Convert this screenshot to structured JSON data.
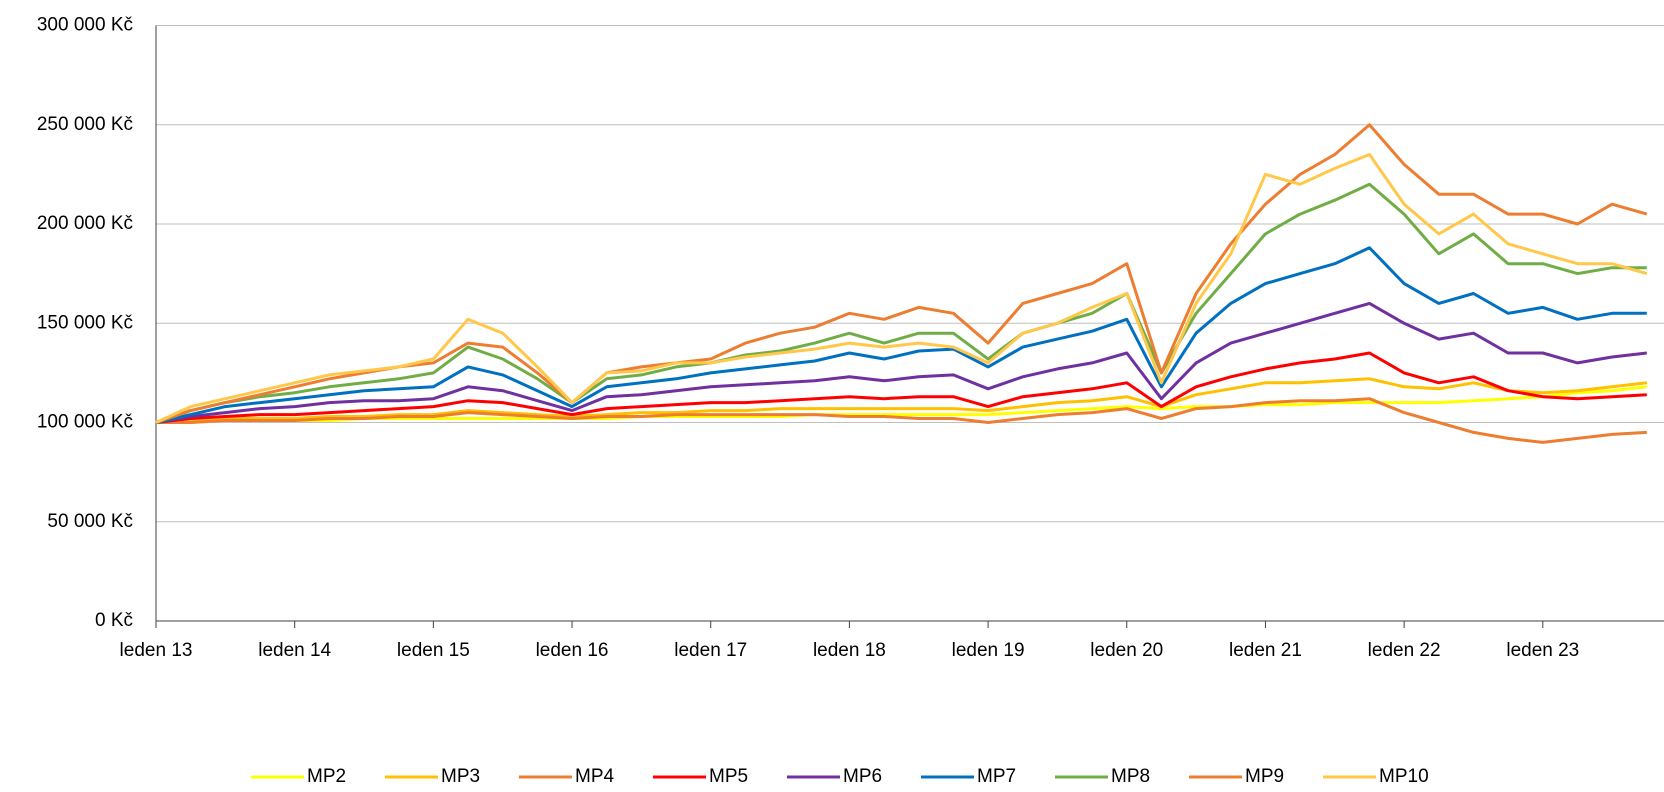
{
  "chart_data": {
    "type": "line",
    "categories": [
      "leden 13",
      null,
      null,
      null,
      "leden 14",
      null,
      null,
      null,
      "leden 15",
      null,
      null,
      null,
      "leden 16",
      null,
      null,
      null,
      "leden 17",
      null,
      null,
      null,
      "leden 18",
      null,
      null,
      null,
      "leden 19",
      null,
      null,
      null,
      "leden 20",
      null,
      null,
      null,
      "leden 21",
      null,
      null,
      null,
      "leden 22",
      null,
      null,
      null,
      "leden 23",
      null,
      null,
      null
    ],
    "ylim": [
      0,
      300000
    ],
    "yticks": [
      {
        "value": 0,
        "label": "0 Kč"
      },
      {
        "value": 50000,
        "label": "50 000 Kč"
      },
      {
        "value": 100000,
        "label": "100 000 Kč"
      },
      {
        "value": 150000,
        "label": "150 000 Kč"
      },
      {
        "value": 200000,
        "label": "200 000 Kč"
      },
      {
        "value": 250000,
        "label": "250 000 Kč"
      },
      {
        "value": 300000,
        "label": "300 000 Kč"
      }
    ],
    "grid": true,
    "legend": "bottom",
    "series": [
      {
        "name": "MP2",
        "color": "#ffff00",
        "values": [
          100000,
          100000,
          101000,
          101000,
          101000,
          101000,
          102000,
          102000,
          102000,
          102000,
          102000,
          102000,
          102000,
          102000,
          103000,
          103000,
          103000,
          103000,
          103000,
          104000,
          104000,
          104000,
          104000,
          104000,
          104000,
          105000,
          106000,
          107000,
          108000,
          107000,
          108000,
          108000,
          109000,
          109000,
          110000,
          110000,
          110000,
          110000,
          111000,
          112000,
          113000,
          115000,
          116000,
          118000
        ]
      },
      {
        "name": "MP3",
        "color": "#ffc000",
        "values": [
          100000,
          101000,
          102000,
          102000,
          102000,
          103000,
          103000,
          104000,
          104000,
          106000,
          105000,
          104000,
          103000,
          104000,
          105000,
          105000,
          106000,
          106000,
          107000,
          107000,
          107000,
          107000,
          107000,
          107000,
          106000,
          108000,
          110000,
          111000,
          113000,
          108000,
          114000,
          117000,
          120000,
          120000,
          121000,
          122000,
          118000,
          117000,
          120000,
          116000,
          115000,
          116000,
          118000,
          120000
        ]
      },
      {
        "name": "MP4",
        "color": "#ed7d31",
        "values": [
          100000,
          100000,
          101000,
          101000,
          101000,
          102000,
          102000,
          103000,
          103000,
          105000,
          104000,
          103000,
          102000,
          103000,
          103000,
          104000,
          104000,
          104000,
          104000,
          104000,
          103000,
          103000,
          102000,
          102000,
          100000,
          102000,
          104000,
          105000,
          107000,
          102000,
          107000,
          108000,
          110000,
          111000,
          111000,
          112000,
          105000,
          100000,
          95000,
          92000,
          90000,
          92000,
          94000,
          95000
        ]
      },
      {
        "name": "MP5",
        "color": "#ff0000",
        "values": [
          100000,
          102000,
          103000,
          104000,
          104000,
          105000,
          106000,
          107000,
          108000,
          111000,
          110000,
          107000,
          104000,
          107000,
          108000,
          109000,
          110000,
          110000,
          111000,
          112000,
          113000,
          112000,
          113000,
          113000,
          108000,
          113000,
          115000,
          117000,
          120000,
          108000,
          118000,
          123000,
          127000,
          130000,
          132000,
          135000,
          125000,
          120000,
          123000,
          116000,
          113000,
          112000,
          113000,
          114000
        ]
      },
      {
        "name": "MP6",
        "color": "#7030a0",
        "values": [
          100000,
          103000,
          105000,
          107000,
          108000,
          110000,
          111000,
          111000,
          112000,
          118000,
          116000,
          111000,
          106000,
          113000,
          114000,
          116000,
          118000,
          119000,
          120000,
          121000,
          123000,
          121000,
          123000,
          124000,
          117000,
          123000,
          127000,
          130000,
          135000,
          112000,
          130000,
          140000,
          145000,
          150000,
          155000,
          160000,
          150000,
          142000,
          145000,
          135000,
          135000,
          130000,
          133000,
          135000
        ]
      },
      {
        "name": "MP7",
        "color": "#0070c0",
        "values": [
          100000,
          104000,
          108000,
          110000,
          112000,
          114000,
          116000,
          117000,
          118000,
          128000,
          124000,
          116000,
          108000,
          118000,
          120000,
          122000,
          125000,
          127000,
          129000,
          131000,
          135000,
          132000,
          136000,
          137000,
          128000,
          138000,
          142000,
          146000,
          152000,
          118000,
          145000,
          160000,
          170000,
          175000,
          180000,
          188000,
          170000,
          160000,
          165000,
          155000,
          158000,
          152000,
          155000,
          155000
        ]
      },
      {
        "name": "MP8",
        "color": "#70ad47",
        "values": [
          100000,
          106000,
          110000,
          113000,
          115000,
          118000,
          120000,
          122000,
          125000,
          138000,
          132000,
          122000,
          110000,
          122000,
          124000,
          128000,
          130000,
          134000,
          136000,
          140000,
          145000,
          140000,
          145000,
          145000,
          132000,
          145000,
          150000,
          155000,
          165000,
          125000,
          155000,
          175000,
          195000,
          205000,
          212000,
          220000,
          205000,
          185000,
          195000,
          180000,
          180000,
          175000,
          178000,
          178000
        ]
      },
      {
        "name": "MP9",
        "color": "#ed7d31",
        "values": [
          100000,
          106000,
          110000,
          114000,
          118000,
          122000,
          125000,
          128000,
          130000,
          140000,
          138000,
          125000,
          110000,
          125000,
          128000,
          130000,
          132000,
          140000,
          145000,
          148000,
          155000,
          152000,
          158000,
          155000,
          140000,
          160000,
          165000,
          170000,
          180000,
          125000,
          165000,
          190000,
          210000,
          225000,
          235000,
          250000,
          230000,
          215000,
          215000,
          205000,
          205000,
          200000,
          210000,
          205000
        ]
      },
      {
        "name": "MP10",
        "color": "#ffc84a",
        "values": [
          100000,
          108000,
          112000,
          116000,
          120000,
          124000,
          126000,
          128000,
          132000,
          152000,
          145000,
          128000,
          110000,
          125000,
          126000,
          130000,
          130000,
          133000,
          135000,
          137000,
          140000,
          138000,
          140000,
          138000,
          130000,
          145000,
          150000,
          158000,
          165000,
          120000,
          160000,
          185000,
          225000,
          220000,
          228000,
          235000,
          210000,
          195000,
          205000,
          190000,
          185000,
          180000,
          180000,
          175000
        ]
      }
    ]
  }
}
